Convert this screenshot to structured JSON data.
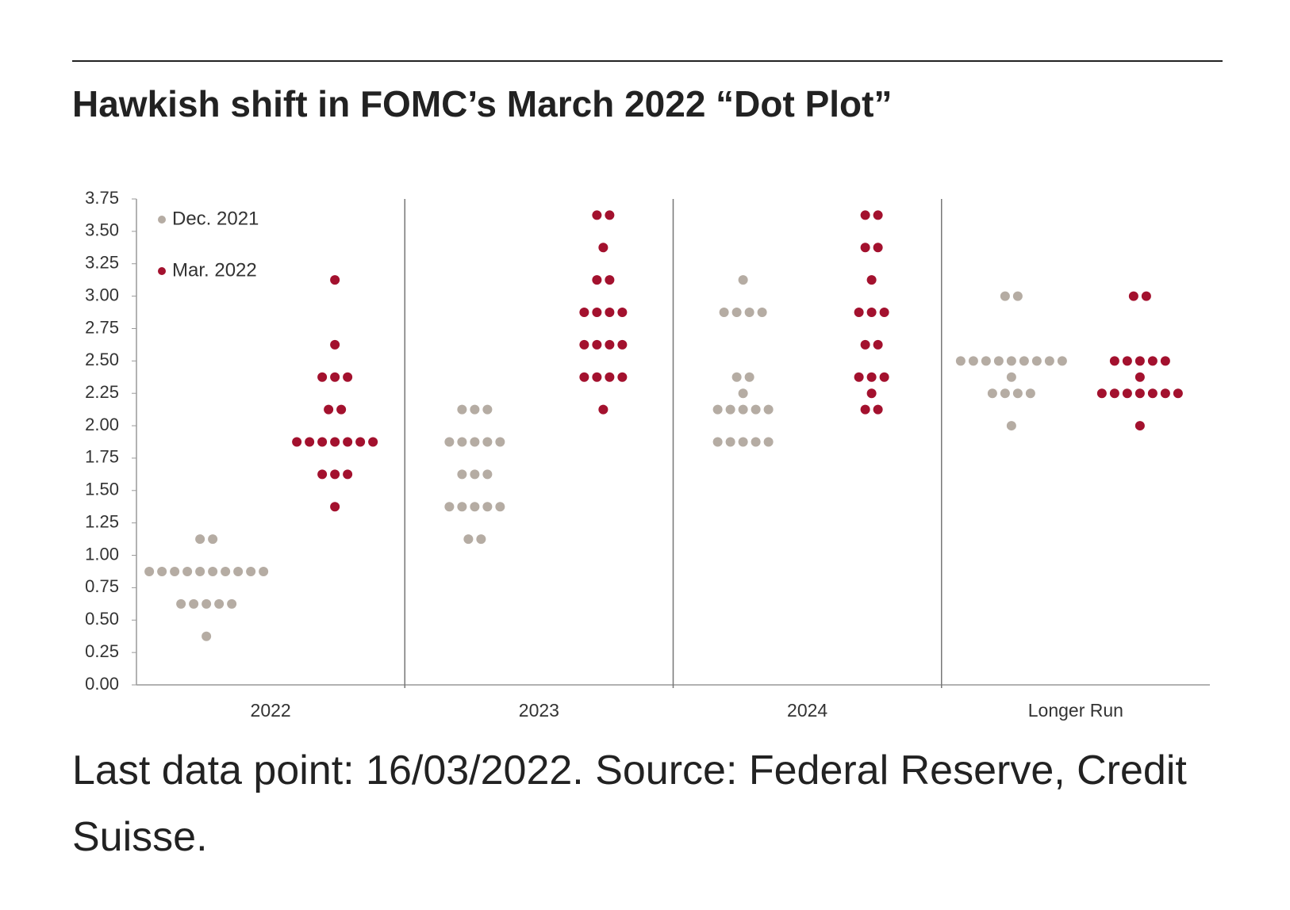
{
  "chart_data": {
    "type": "dot",
    "title": "Hawkish shift in FOMC’s March 2022 “Dot Plot”",
    "footnote": "Last data point: 16/03/2022. Source: Federal Reserve, Credit Suisse.",
    "categories": [
      "2022",
      "2023",
      "2024",
      "Longer Run"
    ],
    "ylim": [
      0,
      3.75
    ],
    "yticks": [
      {
        "value": 0,
        "label": "0.00"
      },
      {
        "value": 0.25,
        "label": "0.25"
      },
      {
        "value": 0.5,
        "label": "0.50"
      },
      {
        "value": 0.75,
        "label": "0.75"
      },
      {
        "value": 1,
        "label": "1.00"
      },
      {
        "value": 1.25,
        "label": "1.25"
      },
      {
        "value": 1.5,
        "label": "1.50"
      },
      {
        "value": 1.75,
        "label": "1.75"
      },
      {
        "value": 2,
        "label": "2.00"
      },
      {
        "value": 2.25,
        "label": "2.25"
      },
      {
        "value": 2.5,
        "label": "2.50"
      },
      {
        "value": 2.75,
        "label": "2.75"
      },
      {
        "value": 3,
        "label": "3.00"
      },
      {
        "value": 3.25,
        "label": "3.25"
      },
      {
        "value": 3.5,
        "label": "3.50"
      },
      {
        "value": 3.75,
        "label": "3.75"
      }
    ],
    "legend": "top-left",
    "series": [
      {
        "name": "Dec. 2021",
        "color": "#b5aca3",
        "values": [
          [
            1.125,
            1.125,
            0.875,
            0.875,
            0.875,
            0.875,
            0.875,
            0.875,
            0.875,
            0.875,
            0.875,
            0.875,
            0.625,
            0.625,
            0.625,
            0.625,
            0.625,
            0.375
          ],
          [
            2.125,
            2.125,
            2.125,
            1.875,
            1.875,
            1.875,
            1.875,
            1.875,
            1.625,
            1.625,
            1.625,
            1.375,
            1.375,
            1.375,
            1.375,
            1.375,
            1.125,
            1.125
          ],
          [
            3.125,
            2.875,
            2.875,
            2.875,
            2.875,
            2.375,
            2.375,
            2.25,
            2.125,
            2.125,
            2.125,
            2.125,
            2.125,
            1.875,
            1.875,
            1.875,
            1.875,
            1.875
          ],
          [
            3,
            3,
            2.5,
            2.5,
            2.5,
            2.5,
            2.5,
            2.5,
            2.5,
            2.5,
            2.5,
            2.375,
            2.25,
            2.25,
            2.25,
            2.25,
            2
          ]
        ]
      },
      {
        "name": "Mar. 2022",
        "color": "#a3112e",
        "values": [
          [
            3.125,
            2.625,
            2.375,
            2.375,
            2.375,
            2.125,
            2.125,
            1.875,
            1.875,
            1.875,
            1.875,
            1.875,
            1.875,
            1.875,
            1.625,
            1.625,
            1.625,
            1.375
          ],
          [
            3.625,
            3.625,
            3.375,
            3.125,
            3.125,
            2.875,
            2.875,
            2.875,
            2.875,
            2.625,
            2.625,
            2.625,
            2.625,
            2.375,
            2.375,
            2.375,
            2.375,
            2.125
          ],
          [
            3.625,
            3.625,
            3.375,
            3.375,
            3.125,
            2.875,
            2.875,
            2.875,
            2.625,
            2.625,
            2.375,
            2.375,
            2.375,
            2.25,
            2.125,
            2.125
          ],
          [
            3,
            3,
            2.5,
            2.5,
            2.5,
            2.5,
            2.5,
            2.375,
            2.25,
            2.25,
            2.25,
            2.25,
            2.25,
            2.25,
            2.25,
            2
          ]
        ]
      }
    ]
  }
}
